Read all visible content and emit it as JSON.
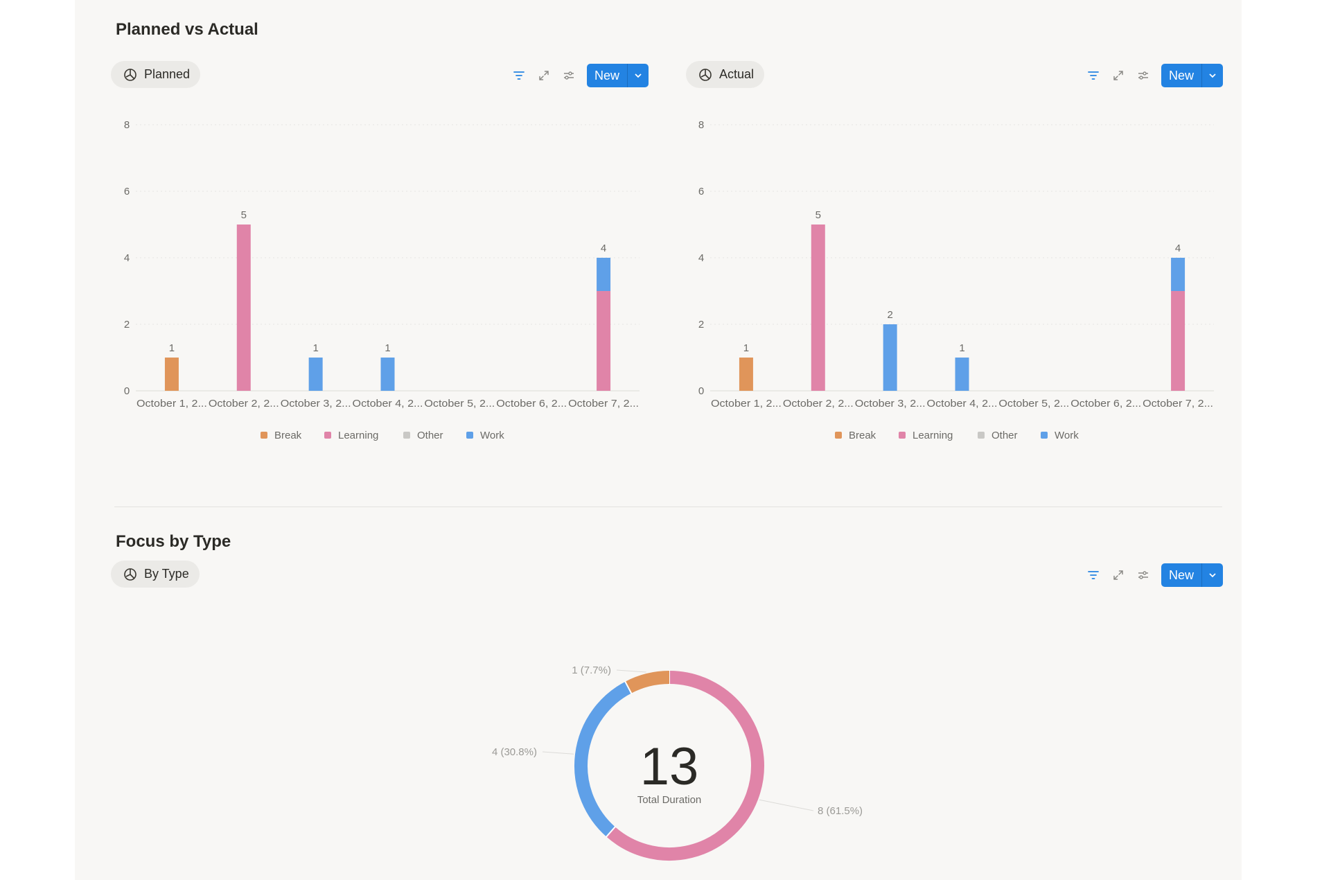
{
  "sections": {
    "planned_vs_actual": {
      "title": "Planned vs Actual"
    },
    "focus_by_type": {
      "title": "Focus by Type"
    }
  },
  "views": [
    {
      "label": "Planned",
      "icon": "pie-chart-icon",
      "new_label": "New"
    },
    {
      "label": "Actual",
      "icon": "pie-chart-icon",
      "new_label": "New"
    },
    {
      "label": "By Type",
      "icon": "pie-chart-icon",
      "new_label": "New"
    }
  ],
  "toolbar_icons": [
    "filter-icon",
    "expand-icon",
    "settings-sliders-icon"
  ],
  "colors": {
    "Break": "#e0955a",
    "Learning": "#e084a8",
    "Other": "#c9c8c5",
    "Work": "#5fa0e8",
    "accent": "#2383e2"
  },
  "chart_data": [
    {
      "type": "bar",
      "stacked": true,
      "categories": [
        "October 1, 2...",
        "October 2, 2...",
        "October 3, 2...",
        "October 4, 2...",
        "October 5, 2...",
        "October 6, 2...",
        "October 7, 2..."
      ],
      "series": [
        {
          "name": "Break",
          "values": [
            1,
            0,
            0,
            0,
            0,
            0,
            0
          ]
        },
        {
          "name": "Learning",
          "values": [
            0,
            5,
            0,
            0,
            0,
            0,
            3
          ]
        },
        {
          "name": "Other",
          "values": [
            0,
            0,
            0,
            0,
            0,
            0,
            0
          ]
        },
        {
          "name": "Work",
          "values": [
            0,
            0,
            1,
            1,
            0,
            0,
            1
          ]
        }
      ],
      "totals": [
        "1",
        "5",
        "1",
        "1",
        "",
        "",
        "4"
      ],
      "yticks": [
        "0",
        "2",
        "4",
        "6",
        "8"
      ],
      "ylim": [
        0,
        8
      ],
      "grid": true,
      "legend": "bottom"
    },
    {
      "type": "bar",
      "stacked": true,
      "categories": [
        "October 1, 2...",
        "October 2, 2...",
        "October 3, 2...",
        "October 4, 2...",
        "October 5, 2...",
        "October 6, 2...",
        "October 7, 2..."
      ],
      "series": [
        {
          "name": "Break",
          "values": [
            1,
            0,
            0,
            0,
            0,
            0,
            0
          ]
        },
        {
          "name": "Learning",
          "values": [
            0,
            5,
            0,
            0,
            0,
            0,
            3
          ]
        },
        {
          "name": "Other",
          "values": [
            0,
            0,
            0,
            0,
            0,
            0,
            0
          ]
        },
        {
          "name": "Work",
          "values": [
            0,
            0,
            2,
            1,
            0,
            0,
            1
          ]
        }
      ],
      "totals": [
        "1",
        "5",
        "2",
        "1",
        "",
        "",
        "4"
      ],
      "yticks": [
        "0",
        "2",
        "4",
        "6",
        "8"
      ],
      "ylim": [
        0,
        8
      ],
      "grid": true,
      "legend": "bottom"
    },
    {
      "type": "pie",
      "donut": true,
      "slices": [
        {
          "name": "Learning",
          "value": 8,
          "label": "8 (61.5%)"
        },
        {
          "name": "Work",
          "value": 4,
          "label": "4 (30.8%)"
        },
        {
          "name": "Break",
          "value": 1,
          "label": "1 (7.7%)"
        }
      ],
      "center_value": "13",
      "center_label": "Total Duration"
    }
  ]
}
